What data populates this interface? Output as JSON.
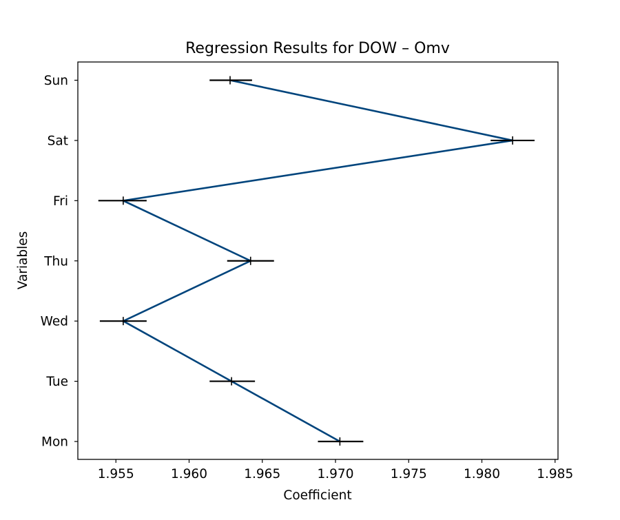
{
  "chart_data": {
    "type": "line",
    "orientation": "horizontal",
    "title": "Regression Results for DOW – Omv",
    "xlabel": "Coefficient",
    "ylabel": "Variables",
    "categories": [
      "Mon",
      "Tue",
      "Wed",
      "Thu",
      "Fri",
      "Sat",
      "Sun"
    ],
    "values": [
      1.9703,
      1.9629,
      1.9555,
      1.9642,
      1.9555,
      1.9821,
      1.9628
    ],
    "ci_lower": [
      1.9688,
      1.9614,
      1.9539,
      1.9626,
      1.9538,
      1.9806,
      1.9614
    ],
    "ci_upper": [
      1.9719,
      1.9645,
      1.9571,
      1.9658,
      1.9571,
      1.9836,
      1.9643
    ],
    "xlim": [
      1.9524,
      1.9852
    ],
    "xticks": [
      1.955,
      1.96,
      1.965,
      1.97,
      1.975,
      1.98,
      1.985
    ],
    "xtick_labels": [
      "1.955",
      "1.960",
      "1.965",
      "1.970",
      "1.975",
      "1.980",
      "1.985"
    ],
    "grid": false,
    "line_color": "#00447c",
    "errorbar_color": "#000000"
  }
}
